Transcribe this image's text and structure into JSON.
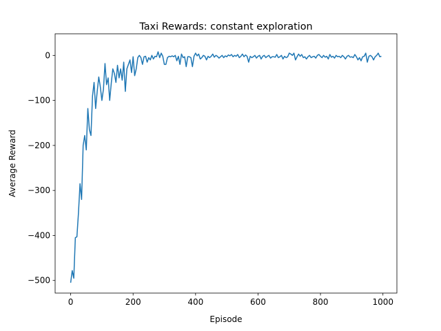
{
  "chart_data": {
    "type": "line",
    "title": "Taxi Rewards: constant exploration",
    "xlabel": "Episode",
    "ylabel": "Average Reward",
    "x": [
      0,
      5,
      10,
      15,
      20,
      25,
      30,
      35,
      40,
      45,
      50,
      55,
      60,
      65,
      70,
      75,
      80,
      85,
      90,
      95,
      100,
      105,
      110,
      115,
      120,
      125,
      130,
      135,
      140,
      145,
      150,
      155,
      160,
      165,
      170,
      175,
      180,
      185,
      190,
      195,
      200,
      205,
      210,
      215,
      220,
      225,
      230,
      235,
      240,
      245,
      250,
      255,
      260,
      265,
      270,
      275,
      280,
      285,
      290,
      295,
      300,
      305,
      310,
      315,
      320,
      325,
      330,
      335,
      340,
      345,
      350,
      355,
      360,
      365,
      370,
      375,
      380,
      385,
      390,
      395,
      400,
      405,
      410,
      415,
      420,
      425,
      430,
      435,
      440,
      445,
      450,
      455,
      460,
      465,
      470,
      475,
      480,
      485,
      490,
      495,
      500,
      505,
      510,
      515,
      520,
      525,
      530,
      535,
      540,
      545,
      550,
      555,
      560,
      565,
      570,
      575,
      580,
      585,
      590,
      595,
      600,
      605,
      610,
      615,
      620,
      625,
      630,
      635,
      640,
      645,
      650,
      655,
      660,
      665,
      670,
      675,
      680,
      685,
      690,
      695,
      700,
      705,
      710,
      715,
      720,
      725,
      730,
      735,
      740,
      745,
      750,
      755,
      760,
      765,
      770,
      775,
      780,
      785,
      790,
      795,
      800,
      805,
      810,
      815,
      820,
      825,
      830,
      835,
      840,
      845,
      850,
      855,
      860,
      865,
      870,
      875,
      880,
      885,
      890,
      895,
      900,
      905,
      910,
      915,
      920,
      925,
      930,
      935,
      940,
      945,
      950,
      955,
      960,
      965,
      970,
      975,
      980,
      985,
      990,
      995
    ],
    "series": [
      {
        "name": "reward",
        "color": "#1f77b4",
        "values": [
          -505,
          -478,
          -495,
          -405,
          -403,
          -350,
          -285,
          -320,
          -200,
          -178,
          -210,
          -118,
          -165,
          -178,
          -90,
          -60,
          -118,
          -80,
          -48,
          -70,
          -100,
          -75,
          -18,
          -65,
          -50,
          -100,
          -62,
          -30,
          -40,
          -60,
          -22,
          -50,
          -30,
          -55,
          -15,
          -80,
          -30,
          -20,
          -10,
          -38,
          -3,
          -45,
          -30,
          -5,
          0,
          -5,
          -20,
          -3,
          -2,
          -15,
          -5,
          -10,
          0,
          -8,
          -2,
          -3,
          8,
          -5,
          5,
          -2,
          -20,
          -20,
          -5,
          -2,
          -3,
          -1,
          -3,
          0,
          -12,
          -2,
          -20,
          3,
          -5,
          -3,
          -25,
          -3,
          -3,
          -5,
          -25,
          -2,
          5,
          -1,
          3,
          -8,
          -5,
          0,
          -2,
          -10,
          -2,
          -5,
          -2,
          3,
          -4,
          0,
          -2,
          -6,
          -3,
          0,
          -5,
          -1,
          -3,
          1,
          -1,
          2,
          -3,
          0,
          -2,
          2,
          -5,
          -2,
          3,
          -3,
          1,
          -2,
          -15,
          -2,
          -5,
          -3,
          0,
          -6,
          -2,
          0,
          -8,
          -2,
          0,
          -5,
          -2,
          0,
          -6,
          -3,
          -3,
          -4,
          2,
          -5,
          -3,
          0,
          -8,
          -2,
          -5,
          -3,
          5,
          3,
          0,
          5,
          -10,
          -3,
          3,
          -2,
          2,
          -5,
          -3,
          -8,
          -3,
          0,
          -5,
          -3,
          -2,
          -6,
          0,
          2,
          -2,
          -5,
          0,
          -4,
          -2,
          -8,
          2,
          -4,
          -2,
          -6,
          0,
          -3,
          -2,
          -5,
          0,
          -3,
          -8,
          -2,
          0,
          -4,
          -3,
          -5,
          2,
          -3,
          -10,
          -5,
          -12,
          -3,
          -2,
          5,
          -15,
          -2,
          0,
          -3,
          -10,
          -3,
          0,
          5,
          -3,
          -2
        ]
      }
    ],
    "xlim": [
      -49.75,
      1044.75
    ],
    "ylim": [
      -528,
      48
    ],
    "xticks": [
      0,
      200,
      400,
      600,
      800,
      1000
    ],
    "yticks": [
      {
        "value": -500,
        "label": "−500"
      },
      {
        "value": -400,
        "label": "−400"
      },
      {
        "value": -300,
        "label": "−300"
      },
      {
        "value": -200,
        "label": "−200"
      },
      {
        "value": -100,
        "label": "−100"
      },
      0
    ]
  }
}
